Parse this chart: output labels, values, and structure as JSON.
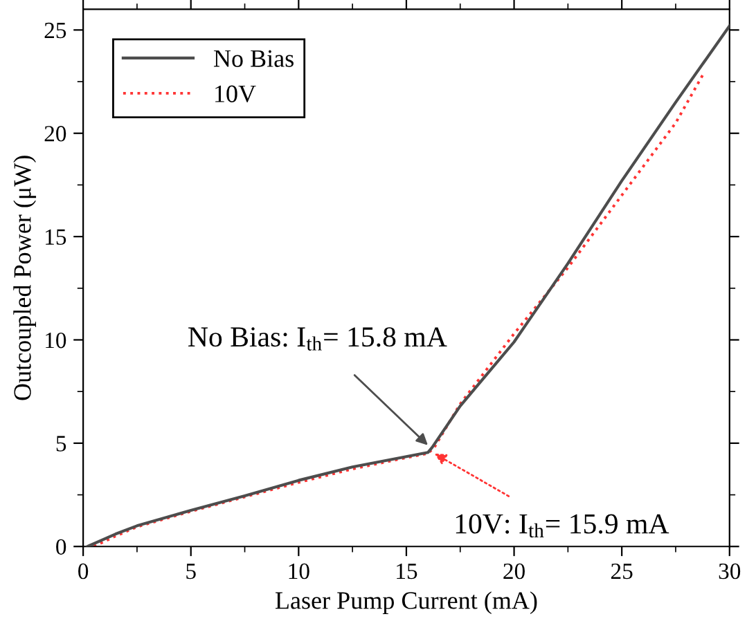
{
  "chart_data": {
    "type": "line",
    "xlabel": "Laser Pump Current (mA)",
    "ylabel": "Outcoupled Power (μW)",
    "xlim": [
      0,
      30
    ],
    "ylim": [
      0,
      26
    ],
    "xticks": [
      0,
      5,
      10,
      15,
      20,
      25,
      30
    ],
    "yticks": [
      0,
      5,
      10,
      15,
      20,
      25
    ],
    "grid": false,
    "legend": "top left",
    "series": [
      {
        "name": "No Bias",
        "color": "#4d4d4d",
        "line_style": "solid",
        "x": [
          0.2,
          1.5,
          2.5,
          5,
          7.5,
          10,
          12.5,
          15,
          16,
          16.2,
          17.5,
          20,
          22.5,
          25,
          27.5,
          30
        ],
        "values": [
          0,
          0.6,
          1.0,
          1.75,
          2.45,
          3.2,
          3.85,
          4.35,
          4.55,
          4.8,
          6.8,
          9.9,
          13.7,
          17.7,
          21.5,
          25.2
        ]
      },
      {
        "name": "10V",
        "color": "#ff3333",
        "line_style": "dotted",
        "x": [
          0.5,
          1.5,
          2.5,
          5,
          7.5,
          10,
          12.5,
          15,
          16,
          16.3,
          17.5,
          20,
          22.5,
          25,
          27.5,
          28.8
        ],
        "values": [
          0,
          0.5,
          0.95,
          1.7,
          2.4,
          3.1,
          3.75,
          4.3,
          4.5,
          4.8,
          6.9,
          10.3,
          13.5,
          17.0,
          20.5,
          22.9
        ]
      }
    ],
    "annotations": [
      {
        "text": "No Bias: I$_{th}$= 15.8 mA",
        "x": 16.0,
        "y": 4.9
      },
      {
        "text": "10V: I$_{th}$= 15.9 mA",
        "x": 16.3,
        "y": 4.5
      }
    ]
  }
}
